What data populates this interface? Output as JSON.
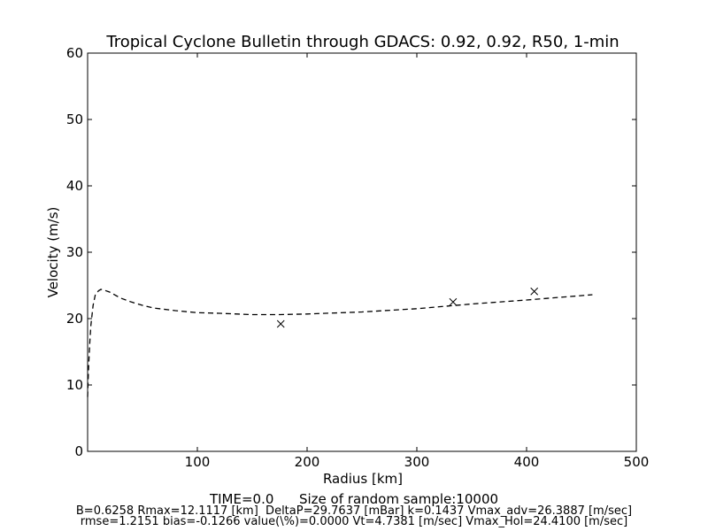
{
  "chart_data": {
    "type": "line",
    "title": "Tropical Cyclone Bulletin through GDACS: 0.92, 0.92, R50, 1-min",
    "xlabel": "Radius [km]",
    "ylabel": "Velocity (m/s)",
    "xlim": [
      0,
      500
    ],
    "ylim": [
      0,
      60
    ],
    "x_ticks": [
      100,
      200,
      300,
      400,
      500
    ],
    "y_ticks": [
      0,
      10,
      20,
      30,
      40,
      50,
      60
    ],
    "grid": false,
    "legend": "none",
    "series": [
      {
        "style": "dashed-line",
        "color": "#000000",
        "x": [
          0,
          0.3,
          1,
          2,
          3,
          5,
          7,
          10,
          12.1,
          15,
          20,
          30,
          40,
          50,
          60,
          80,
          100,
          120,
          150,
          175,
          200,
          250,
          300,
          350,
          400,
          430,
          460
        ],
        "y": [
          8.2,
          10,
          13,
          16.5,
          19,
          22,
          23.6,
          24.2,
          24.4,
          24.3,
          24,
          23.1,
          22.5,
          22,
          21.6,
          21.2,
          20.9,
          20.8,
          20.6,
          20.6,
          20.7,
          21,
          21.5,
          22.2,
          22.8,
          23.2,
          23.6
        ]
      },
      {
        "style": "x-markers",
        "color": "#000000",
        "x": [
          176,
          333,
          407
        ],
        "y": [
          19.2,
          22.5,
          24.1
        ]
      }
    ]
  },
  "footer": {
    "line1": "TIME=0.0      Size of random sample:10000",
    "line2": "B=0.6258 Rmax=12.1117 [km]  DeltaP=29.7637 [mBar] k=0.1437 Vmax_adv=26.3887 [m/sec]",
    "line3": "rmse=1.2151 bias=-0.1266 value(\\%)=0.0000 Vt=4.7381 [m/sec] Vmax_Hol=24.4100 [m/sec]"
  }
}
